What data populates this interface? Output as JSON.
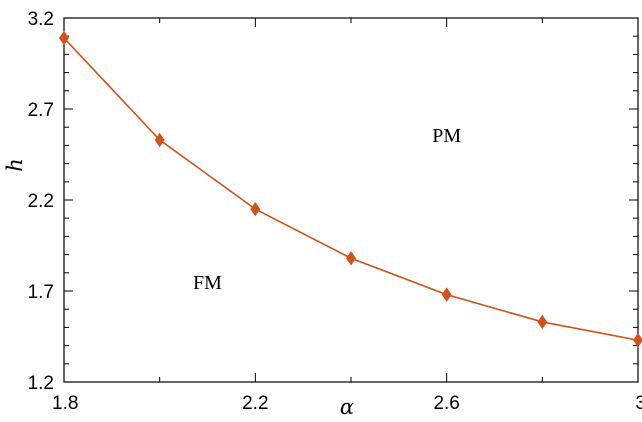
{
  "chart_data": {
    "type": "line",
    "title": "",
    "xlabel": "α",
    "ylabel": "h",
    "xlim": [
      1.8,
      3.0
    ],
    "ylim": [
      1.2,
      3.2
    ],
    "xticks": [
      1.8,
      2.2,
      2.6,
      3.0
    ],
    "xtick_labels": [
      "1.8",
      "2.2",
      "2.6",
      "3"
    ],
    "yticks": [
      1.2,
      1.7,
      2.2,
      2.7,
      3.2
    ],
    "ytick_labels": [
      "1.2",
      "1.7",
      "2.2",
      "2.7",
      "3.2"
    ],
    "grid": false,
    "series": [
      {
        "color": "#d2521a",
        "marker": "diamond",
        "x": [
          1.8,
          2.0,
          2.2,
          2.4,
          2.6,
          2.8,
          3.0
        ],
        "y": [
          3.09,
          2.53,
          2.15,
          1.88,
          1.68,
          1.53,
          1.43
        ]
      }
    ],
    "annotations": [
      {
        "text": "PM",
        "x": 2.6,
        "y": 2.52
      },
      {
        "text": "FM",
        "x": 2.1,
        "y": 1.71
      }
    ]
  }
}
